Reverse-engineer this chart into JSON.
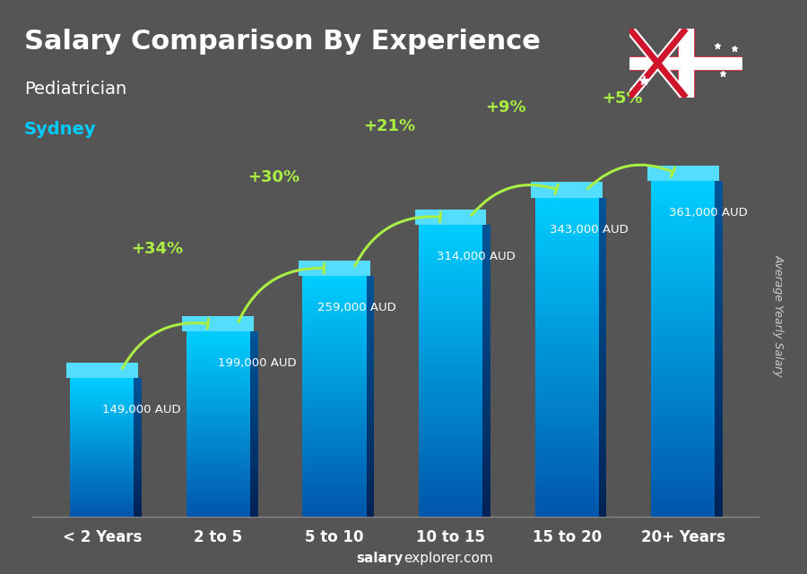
{
  "title_line1": "Salary Comparison By Experience",
  "title_line2": "Pediatrician",
  "title_line3": "Sydney",
  "categories": [
    "< 2 Years",
    "2 to 5",
    "5 to 10",
    "10 to 15",
    "15 to 20",
    "20+ Years"
  ],
  "values": [
    149000,
    199000,
    259000,
    314000,
    343000,
    361000
  ],
  "value_labels": [
    "149,000 AUD",
    "199,000 AUD",
    "259,000 AUD",
    "314,000 AUD",
    "343,000 AUD",
    "361,000 AUD"
  ],
  "pct_changes": [
    "+34%",
    "+30%",
    "+21%",
    "+9%",
    "+5%"
  ],
  "bar_color_top": "#00d4ff",
  "bar_color_bottom": "#0077aa",
  "bar_color_mid": "#00aadd",
  "background_color": "#555555",
  "title_color": "#ffffff",
  "subtitle_color": "#ffffff",
  "city_color": "#00ccff",
  "arrow_color": "#aaee44",
  "pct_color": "#aaee44",
  "value_label_color": "#ffffff",
  "xlabel_color": "#ffffff",
  "footer_text": "salaryexplorer.com",
  "ylabel_text": "Average Yearly Salary",
  "ylabel_color": "#cccccc",
  "figsize": [
    9.0,
    6.41
  ]
}
